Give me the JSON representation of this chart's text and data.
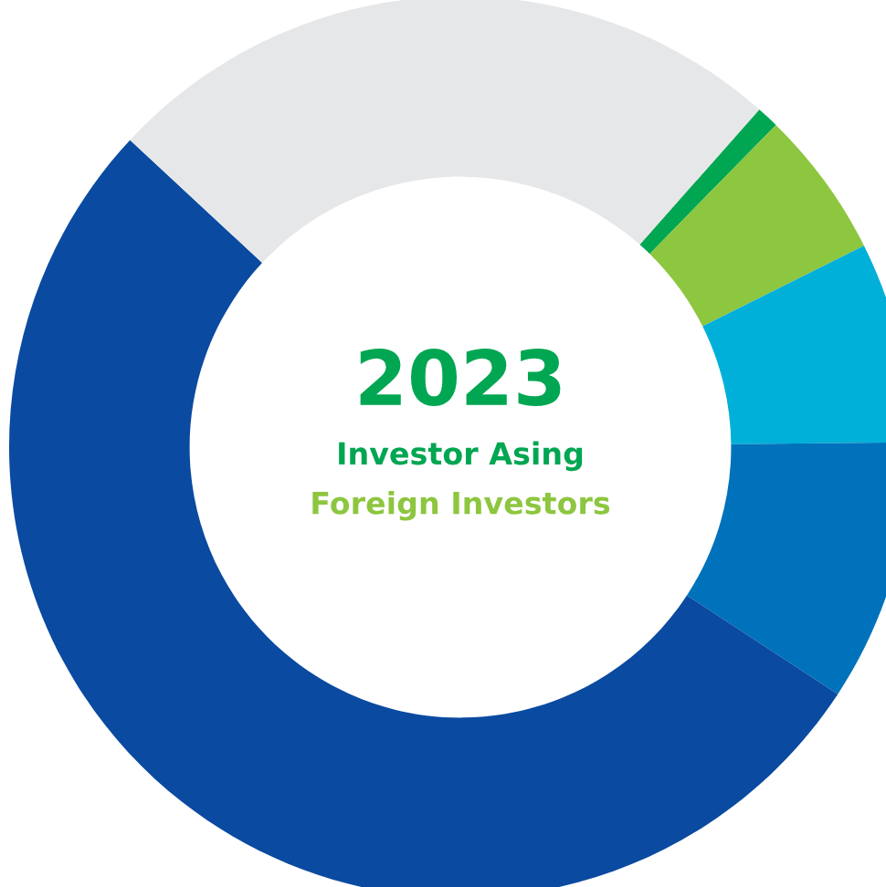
{
  "chart_data": {
    "type": "donut",
    "title": "2023",
    "subtitle": "Investor Asing",
    "annotations": [
      "Foreign Investors"
    ],
    "categories": [
      null,
      null,
      null,
      null,
      null,
      null
    ],
    "values": [
      0.8,
      5.3,
      7.2,
      9.4,
      52.7,
      24.6
    ],
    "colors": [
      "#00a651",
      "#8dc63f",
      "#00b0d8",
      "#0072bc",
      "#0a4aa0",
      "#e6e7e9"
    ],
    "legend": false
  }
}
